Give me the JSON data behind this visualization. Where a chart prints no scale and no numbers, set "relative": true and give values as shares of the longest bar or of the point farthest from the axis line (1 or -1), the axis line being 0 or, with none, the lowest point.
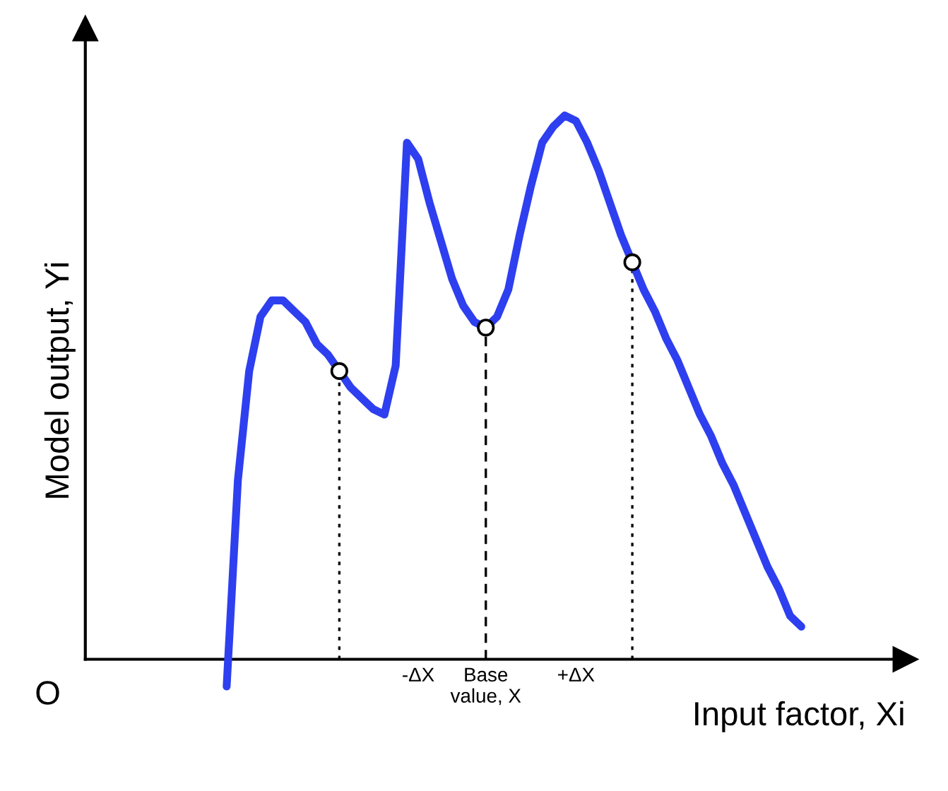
{
  "chart_data": {
    "type": "line",
    "relative": true,
    "xlabel": "Input factor, Xi",
    "ylabel": "Model output, Yi",
    "annotations": [
      "O"
    ],
    "grid": false,
    "marker": "none",
    "categories": [
      null,
      null,
      null,
      null,
      null,
      null,
      null,
      null,
      null,
      null,
      null,
      null,
      null,
      null,
      null,
      null,
      null,
      "-ΔX",
      null,
      null,
      null,
      null,
      null,
      "Base\nvalue, X",
      null,
      null,
      null,
      null,
      null,
      null,
      null,
      "+ΔX",
      null,
      null,
      null,
      null,
      null,
      null,
      null,
      null,
      null,
      null,
      null,
      null,
      null,
      null,
      null,
      null,
      null,
      null,
      null,
      null
    ],
    "series": [
      {
        "color": "#2e3ff0",
        "values": [
          -0.05,
          0.33,
          0.53,
          0.63,
          0.66,
          0.66,
          0.64,
          0.62,
          0.58,
          0.56,
          0.53,
          0.5,
          0.48,
          0.46,
          0.45,
          0.54,
          0.95,
          0.92,
          0.84,
          0.77,
          0.7,
          0.65,
          0.62,
          0.61,
          0.63,
          0.68,
          0.78,
          0.87,
          0.95,
          0.98,
          1.0,
          0.99,
          0.95,
          0.9,
          0.84,
          0.78,
          0.73,
          0.68,
          0.64,
          0.59,
          0.55,
          0.5,
          0.45,
          0.41,
          0.36,
          0.32,
          0.27,
          0.22,
          0.17,
          0.13,
          0.08,
          0.06
        ]
      },
      {
        "type": "lollipop",
        "color": "#000000",
        "marker": "circle",
        "line_style": "dotted",
        "values": [
          null,
          null,
          null,
          null,
          null,
          null,
          null,
          null,
          null,
          null,
          0.53,
          null,
          null,
          null,
          null,
          null,
          null,
          null,
          null,
          null,
          null,
          null,
          null,
          null,
          null,
          null,
          null,
          null,
          null,
          null,
          null,
          null,
          null,
          null,
          null,
          null,
          0.73,
          null,
          null,
          null,
          null,
          null,
          null,
          null,
          null,
          null,
          null,
          null,
          null,
          null,
          null,
          null
        ]
      },
      {
        "type": "lollipop",
        "color": "#000000",
        "marker": "circle",
        "line_style": "dashed",
        "values": [
          null,
          null,
          null,
          null,
          null,
          null,
          null,
          null,
          null,
          null,
          null,
          null,
          null,
          null,
          null,
          null,
          null,
          null,
          null,
          null,
          null,
          null,
          null,
          0.61,
          null,
          null,
          null,
          null,
          null,
          null,
          null,
          null,
          null,
          null,
          null,
          null,
          null,
          null,
          null,
          null,
          null,
          null,
          null,
          null,
          null,
          null,
          null,
          null,
          null,
          null,
          null,
          null
        ]
      }
    ]
  }
}
